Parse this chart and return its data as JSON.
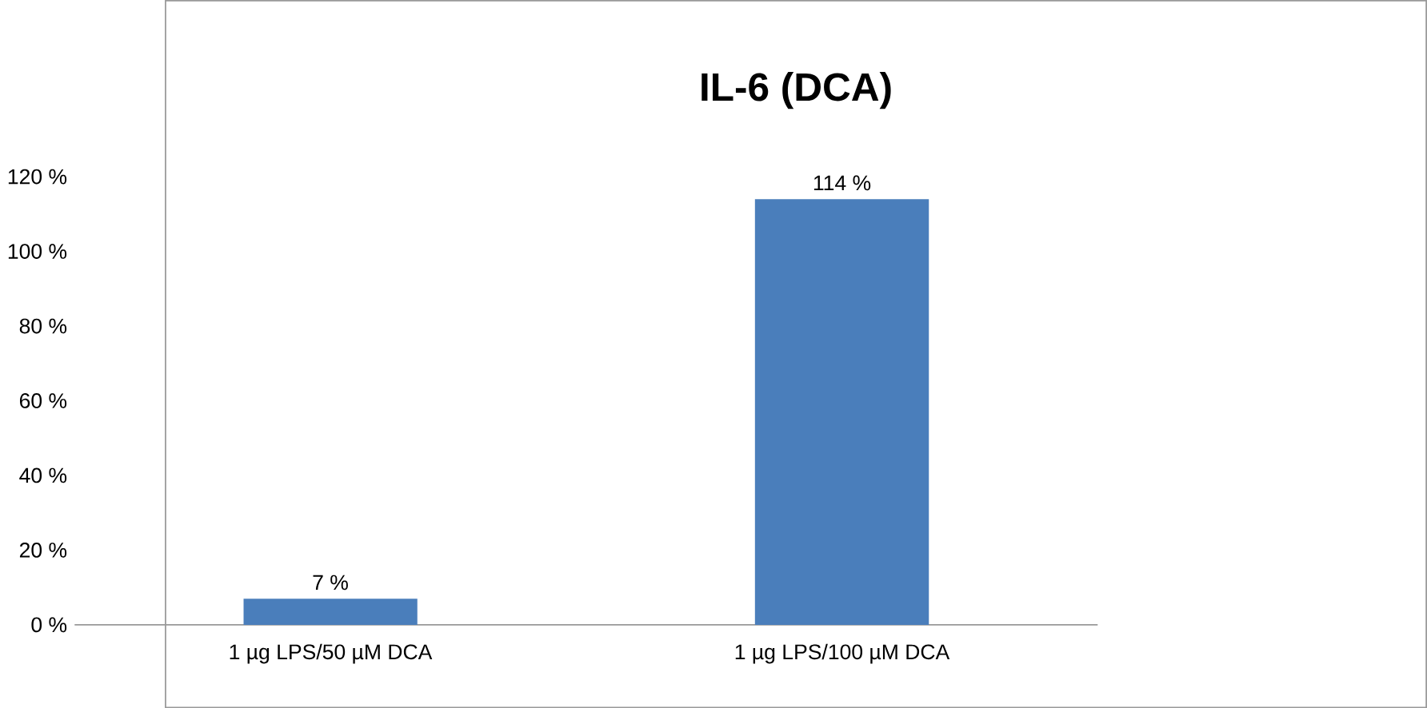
{
  "chart_data": {
    "type": "bar",
    "title": "IL-6 (DCA)",
    "categories": [
      "1 µg LPS/50 µM DCA",
      "1 µg LPS/100 µM DCA"
    ],
    "values": [
      7,
      114
    ],
    "value_labels": [
      "7 %",
      "114 %"
    ],
    "color": "#4a7ebb",
    "ylim": [
      0,
      120
    ],
    "yticks": [
      {
        "value": 0,
        "label": "0 %"
      },
      {
        "value": 20,
        "label": "20 %"
      },
      {
        "value": 40,
        "label": "40 %"
      },
      {
        "value": 60,
        "label": "60 %"
      },
      {
        "value": 80,
        "label": "80 %"
      },
      {
        "value": 100,
        "label": "100 %"
      },
      {
        "value": 120,
        "label": "120 %"
      }
    ]
  }
}
